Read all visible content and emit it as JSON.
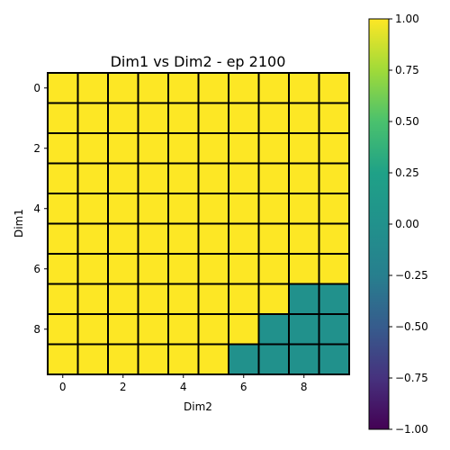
{
  "chart_data": {
    "type": "heatmap",
    "title": "Dim1 vs Dim2 - ep 2100",
    "xlabel": "Dim2",
    "ylabel": "Dim1",
    "x_ticks": [
      "0",
      "2",
      "4",
      "6",
      "8"
    ],
    "y_ticks": [
      "0",
      "2",
      "4",
      "6",
      "8"
    ],
    "x_tick_values": [
      0,
      2,
      4,
      6,
      8
    ],
    "y_tick_values": [
      0,
      2,
      4,
      6,
      8
    ],
    "x_range": [
      -0.5,
      9.5
    ],
    "y_range": [
      -0.5,
      9.5
    ],
    "y_inverted": true,
    "values": [
      [
        1,
        1,
        1,
        1,
        1,
        1,
        1,
        1,
        1,
        1
      ],
      [
        1,
        1,
        1,
        1,
        1,
        1,
        1,
        1,
        1,
        1
      ],
      [
        1,
        1,
        1,
        1,
        1,
        1,
        1,
        1,
        1,
        1
      ],
      [
        1,
        1,
        1,
        1,
        1,
        1,
        1,
        1,
        1,
        1
      ],
      [
        1,
        1,
        1,
        1,
        1,
        1,
        1,
        1,
        1,
        1
      ],
      [
        1,
        1,
        1,
        1,
        1,
        1,
        1,
        1,
        1,
        1
      ],
      [
        1,
        1,
        1,
        1,
        1,
        1,
        1,
        1,
        1,
        1
      ],
      [
        1,
        1,
        1,
        1,
        1,
        1,
        1,
        1,
        0,
        0
      ],
      [
        1,
        1,
        1,
        1,
        1,
        1,
        1,
        0,
        0,
        0
      ],
      [
        1,
        1,
        1,
        1,
        1,
        1,
        0,
        0,
        0,
        0
      ]
    ],
    "colormap": "viridis",
    "vmin": -1,
    "vmax": 1,
    "grid": false,
    "colorbar": {
      "position": "right",
      "ticks": [
        "1.00",
        "0.75",
        "0.50",
        "0.25",
        "0.00",
        "−0.25",
        "−0.50",
        "−0.75",
        "−1.00"
      ],
      "tick_values": [
        1,
        0.75,
        0.5,
        0.25,
        0,
        -0.25,
        -0.5,
        -0.75,
        -1
      ]
    }
  }
}
